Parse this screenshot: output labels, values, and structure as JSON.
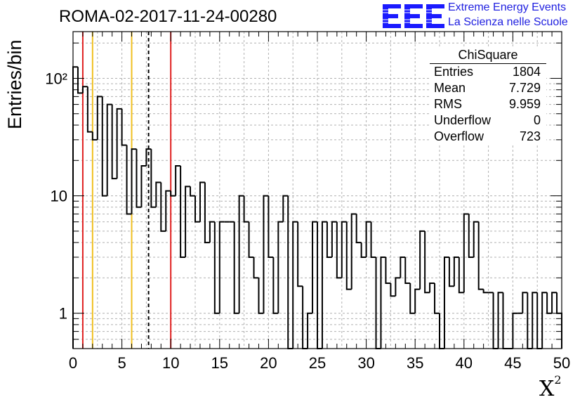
{
  "title": "ROMA-02-2017-11-24-00280",
  "logo": {
    "letters": "EEE",
    "line1": "Extreme Energy Events",
    "line2": "La Scienza nelle Scuole",
    "color": "#1a1aff"
  },
  "stats_box": {
    "name": "ChiSquare",
    "rows": [
      {
        "key": "Entries",
        "value": "1804"
      },
      {
        "key": "Mean",
        "value": "7.729"
      },
      {
        "key": "RMS",
        "value": "9.959"
      },
      {
        "key": "Underflow",
        "value": "0"
      },
      {
        "key": "Overflow",
        "value": "723"
      }
    ]
  },
  "chart_data": {
    "type": "histogram",
    "title": "ROMA-02-2017-11-24-00280",
    "xlabel": "χ²",
    "ylabel": "Entries/bin",
    "xlim": [
      0,
      50
    ],
    "ylim": [
      0.5,
      250
    ],
    "yscale": "log",
    "grid": true,
    "bin_width": 0.5,
    "x_ticks": [
      0,
      5,
      10,
      15,
      20,
      25,
      30,
      35,
      40,
      45,
      50
    ],
    "y_tick_labels": [
      {
        "value": 1,
        "label": "1"
      },
      {
        "value": 10,
        "label": "10"
      },
      {
        "value": 100,
        "label": "10²"
      }
    ],
    "counts": [
      125,
      75,
      85,
      35,
      30,
      70,
      10,
      60,
      14,
      55,
      27,
      7,
      25,
      8,
      18,
      25,
      8,
      13,
      5,
      11,
      10,
      18,
      3,
      12,
      10,
      6,
      13,
      4,
      6,
      1,
      6,
      6,
      6,
      1,
      10,
      6,
      3,
      2,
      1,
      10,
      3,
      1,
      6,
      10,
      0.4,
      6,
      1.7,
      0.4,
      1,
      6,
      0.4,
      6,
      3,
      6,
      2,
      6,
      1.6,
      7,
      4,
      3,
      6,
      3,
      0.4,
      3,
      1.8,
      1.4,
      2,
      3,
      1.8,
      1,
      1.6,
      5,
      1.5,
      1.8,
      1,
      0.4,
      3,
      1.7,
      3,
      1.5,
      7,
      3,
      6,
      1.6,
      1.5,
      1.5,
      0.4,
      1.5,
      0.4,
      0.4,
      1,
      1,
      1.5,
      0.4,
      1.5,
      0.4,
      1.5,
      1,
      1.5,
      1
    ],
    "vertical_lines": [
      {
        "x": 1.0,
        "color": "#e02020",
        "style": "solid"
      },
      {
        "x": 2.0,
        "color": "#f0c020",
        "style": "solid"
      },
      {
        "x": 6.0,
        "color": "#f0c020",
        "style": "solid"
      },
      {
        "x": 7.729,
        "color": "#000000",
        "style": "dashed"
      },
      {
        "x": 10.0,
        "color": "#e02020",
        "style": "solid"
      }
    ]
  }
}
